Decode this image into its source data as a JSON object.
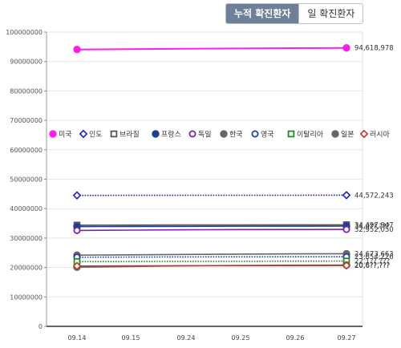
{
  "tabs": [
    {
      "label": "누적 확진환자",
      "active": true
    },
    {
      "label": "일 확진환자",
      "active": false
    }
  ],
  "chart_data": {
    "type": "line",
    "title": "",
    "xlabel": "",
    "ylabel": "",
    "categories": [
      "09.14",
      "09.15",
      "09.24",
      "09.25",
      "09.26",
      "09.27"
    ],
    "ylim": [
      0,
      100000000
    ],
    "yticks": [
      "0",
      "10000000",
      "20000000",
      "30000000",
      "40000000",
      "50000000",
      "60000000",
      "70000000",
      "80000000",
      "90000000",
      "100000000"
    ],
    "grid": true,
    "legend_position": "middle-left",
    "series": [
      {
        "name": "미국",
        "color": "#ff1ee8",
        "marker": "filled-circle",
        "style": "solid",
        "values": [
          94100000,
          94200000,
          94350000,
          94450000,
          94550000,
          94618978
        ],
        "end_label": "94,618,978"
      },
      {
        "name": "인도",
        "color": "#1f1fc4",
        "marker": "diamond",
        "style": "dotted",
        "values": [
          44500000,
          44520000,
          44540000,
          44550000,
          44560000,
          44572243
        ],
        "end_label": "44,572,243"
      },
      {
        "name": "브라질",
        "color": "#555555",
        "marker": "square",
        "style": "solid",
        "values": [
          34400000,
          34420000,
          34460000,
          34480000,
          34490000,
          34497947
        ],
        "end_label": "34,497,947"
      },
      {
        "name": "프랑스",
        "color": "#1c3f94",
        "marker": "filled-circle",
        "style": "solid",
        "values": [
          33900000,
          33950000,
          33990000,
          34020000,
          34040000,
          34060000
        ],
        "end_label": "34,0??,???"
      },
      {
        "name": "독일",
        "color": "#7b22a8",
        "marker": "circle",
        "style": "solid",
        "values": [
          32600000,
          32700000,
          32800000,
          32880000,
          32920000,
          32952050
        ],
        "end_label": "32,952,050"
      },
      {
        "name": "한국",
        "color": "#666666",
        "marker": "filled-circle",
        "style": "solid",
        "values": [
          24200000,
          24300000,
          24450000,
          24550000,
          24620000,
          24673663
        ],
        "end_label": "24,673,663"
      },
      {
        "name": "영국",
        "color": "#1f3fa3",
        "marker": "circle",
        "style": "dotted",
        "values": [
          23500000,
          23550000,
          23600000,
          23620000,
          23640000,
          23654226
        ],
        "end_label": "23,654,226"
      },
      {
        "name": "이탈리아",
        "color": "#238b23",
        "marker": "square",
        "style": "dotted",
        "values": [
          22000000,
          22050000,
          22100000,
          22130000,
          22150000,
          22170000
        ],
        "end_label": "22,1??,???"
      },
      {
        "name": "일본",
        "color": "#666666",
        "marker": "filled-circle",
        "style": "solid",
        "values": [
          20100000,
          20350000,
          20600000,
          20700000,
          20780000,
          20830000
        ],
        "end_label": "20,8??,???"
      },
      {
        "name": "러시아",
        "color": "#c0392b",
        "marker": "diamond",
        "style": "solid",
        "values": [
          20500000,
          20550000,
          20600000,
          20620000,
          20640000,
          20660000
        ],
        "end_label": "20,6??,???"
      }
    ]
  }
}
